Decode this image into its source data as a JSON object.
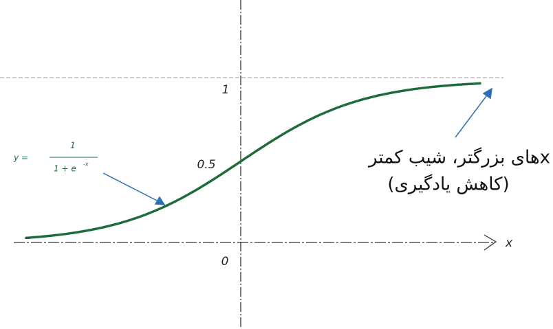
{
  "axis_labels": {
    "y_one": "1",
    "y_half": "0.5",
    "origin": "0",
    "x": "x"
  },
  "formula": {
    "lhs": "y =",
    "numerator": "1",
    "denominator": "1 + e",
    "exponent": "-x"
  },
  "annotation": {
    "line1": "xهای بزرگتر، شیب کمتر",
    "line2": "(کاهش یادگیری)"
  }
}
